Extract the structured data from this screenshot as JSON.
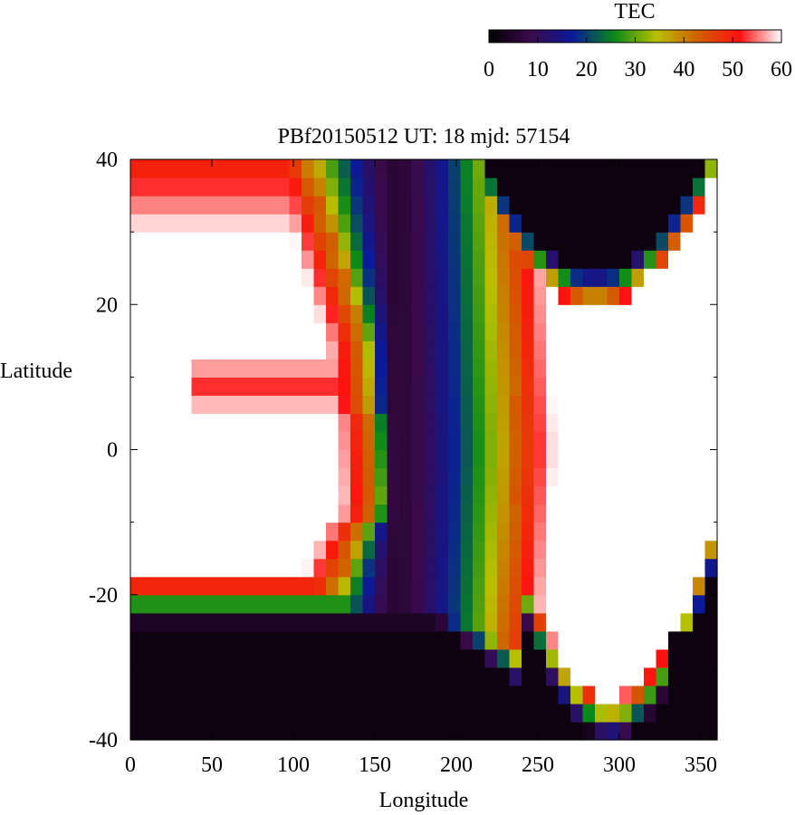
{
  "chart_data": {
    "type": "heatmap",
    "title": "PBf20150512  UT: 18  mjd: 57154",
    "xlabel": "Longitude",
    "ylabel": "Latitude",
    "xlim": [
      0,
      360
    ],
    "ylim": [
      -40,
      40
    ],
    "xticks": [
      "0",
      "50",
      "100",
      "150",
      "200",
      "250",
      "300",
      "350"
    ],
    "yticks": [
      "-40",
      "-20",
      "0",
      "20",
      "40"
    ],
    "colorbar": {
      "label": "TEC",
      "range": [
        0,
        60
      ],
      "ticks": [
        "0",
        "10",
        "20",
        "30",
        "40",
        "50",
        "60"
      ],
      "stops": [
        "#000000",
        "#3a0a4a",
        "#0a1a9a",
        "#0a8a1a",
        "#b8c000",
        "#d06000",
        "#ff1010",
        "#ffffff"
      ]
    },
    "grid_step": [
      7.5,
      2.5
    ],
    "features": {
      "east_crest": {
        "min_lat": -28,
        "max_lat": 26,
        "trough_center_lon": 163,
        "boundary_lon_at_equator": 238,
        "boundary_slope_per_deg_lat": 0.13
      },
      "west_crest": {
        "max_lat": 34,
        "min_lat": -18,
        "bay_center_lon": 150
      },
      "dark_north_region": {
        "center_lon": 285,
        "base_lat": 25
      },
      "dark_south_region": {
        "center_lon": 150,
        "top_lat": -24
      },
      "red_tongue_lat": 9
    }
  }
}
